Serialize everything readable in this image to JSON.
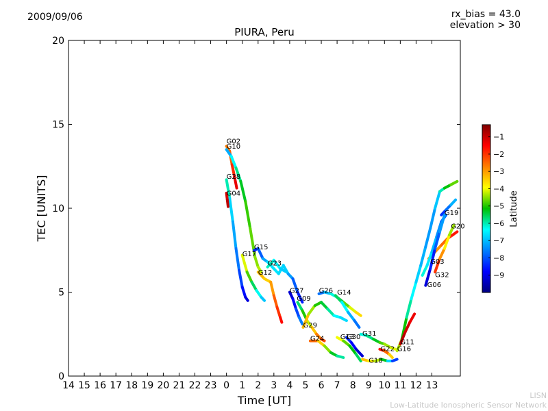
{
  "header": {
    "date": "2009/09/06",
    "rx_bias": "rx_bias = 43.0",
    "elevation": "elevation > 30"
  },
  "credit": {
    "line1": "LISN",
    "line2": "Low-Latitude Ionospheric Sensor Network"
  },
  "chart_data": {
    "type": "scatter",
    "title": "PIURA, Peru",
    "xlabel": "Time [UT]",
    "ylabel": "TEC [UNITS]",
    "x_tick_labels": [
      "14",
      "15",
      "16",
      "17",
      "18",
      "19",
      "20",
      "21",
      "22",
      "23",
      "0",
      "1",
      "2",
      "3",
      "4",
      "5",
      "6",
      "7",
      "8",
      "9",
      "10",
      "11",
      "12",
      "13"
    ],
    "x_tick_hours": [
      -10,
      -9,
      -8,
      -7,
      -6,
      -5,
      -4,
      -3,
      -2,
      -1,
      0,
      1,
      2,
      3,
      4,
      5,
      6,
      7,
      8,
      9,
      10,
      11,
      12,
      13
    ],
    "xlim": [
      -10,
      14.8
    ],
    "ylim": [
      0,
      20
    ],
    "y_ticks": [
      0,
      5,
      10,
      15,
      20
    ],
    "colorbar": {
      "label": "Latitude",
      "range": [
        -10,
        -0.3
      ],
      "ticks": [
        -9,
        -8,
        -7,
        -6,
        -5,
        -4,
        -3,
        -2,
        -1
      ],
      "tick_labels": [
        "−9",
        "−8",
        "−7",
        "−6",
        "−5",
        "−4",
        "−3",
        "−2",
        "−1"
      ]
    },
    "series": [
      {
        "name": "G02",
        "label_at": [
          0.0,
          13.85
        ],
        "points": [
          [
            0.0,
            13.7,
            -2.8
          ],
          [
            0.2,
            13.4,
            -2.6
          ],
          [
            0.35,
            12.6,
            -2.2
          ],
          [
            0.5,
            11.9,
            -1.6
          ],
          [
            0.65,
            11.2,
            -1.0
          ]
        ]
      },
      {
        "name": "G10",
        "label_at": [
          0.0,
          13.55
        ],
        "points": [
          [
            0.0,
            13.5,
            -7.5
          ],
          [
            0.3,
            13.1,
            -6.8
          ],
          [
            0.6,
            12.4,
            -6.0
          ],
          [
            0.9,
            11.6,
            -5.6
          ],
          [
            1.2,
            10.4,
            -5.0
          ],
          [
            1.5,
            8.8,
            -4.8
          ],
          [
            1.8,
            7.1,
            -4.6
          ],
          [
            2.0,
            6.5,
            -4.4
          ],
          [
            2.2,
            6.2,
            -4.2
          ]
        ]
      },
      {
        "name": "G28",
        "label_at": [
          0.0,
          11.75
        ],
        "points": [
          [
            0.0,
            11.7,
            -5.5
          ],
          [
            0.2,
            10.6,
            -6.5
          ],
          [
            0.4,
            9.2,
            -7.0
          ],
          [
            0.6,
            7.6,
            -7.4
          ],
          [
            0.8,
            6.3,
            -7.9
          ],
          [
            1.0,
            5.3,
            -8.4
          ],
          [
            1.2,
            4.7,
            -8.9
          ],
          [
            1.35,
            4.5,
            -9.3
          ]
        ]
      },
      {
        "name": "G04",
        "label_at": [
          0.0,
          10.75
        ],
        "points": [
          [
            0.0,
            10.9,
            -1.2
          ],
          [
            0.05,
            10.5,
            -1.0
          ],
          [
            0.1,
            10.1,
            -0.8
          ]
        ]
      },
      {
        "name": "G17",
        "label_at": [
          1.0,
          7.15
        ],
        "points": [
          [
            1.0,
            7.2,
            -3.8
          ],
          [
            1.3,
            6.2,
            -4.4
          ],
          [
            1.6,
            5.6,
            -5.2
          ],
          [
            1.9,
            5.1,
            -6.0
          ],
          [
            2.2,
            4.7,
            -6.6
          ],
          [
            2.4,
            4.5,
            -7.2
          ]
        ]
      },
      {
        "name": "G15",
        "label_at": [
          1.75,
          7.55
        ],
        "points": [
          [
            1.75,
            7.5,
            -8.5
          ],
          [
            2.0,
            7.6,
            -8.2
          ],
          [
            2.3,
            7.0,
            -7.6
          ],
          [
            2.6,
            6.8,
            -6.8
          ],
          [
            3.0,
            6.4,
            -6.4
          ],
          [
            3.3,
            6.1,
            -6.8
          ],
          [
            3.6,
            6.6,
            -6.6
          ],
          [
            3.9,
            6.1,
            -7.0
          ],
          [
            4.2,
            5.8,
            -7.6
          ],
          [
            4.5,
            5.0,
            -8.2
          ],
          [
            4.8,
            4.4,
            -8.8
          ]
        ]
      },
      {
        "name": "G12",
        "label_at": [
          2.0,
          6.05
        ],
        "points": [
          [
            2.0,
            6.2,
            -3.0
          ],
          [
            2.4,
            5.8,
            -3.6
          ],
          [
            2.8,
            5.6,
            -3.4
          ],
          [
            3.0,
            4.8,
            -2.6
          ],
          [
            3.2,
            4.1,
            -2.2
          ],
          [
            3.4,
            3.5,
            -1.8
          ],
          [
            3.5,
            3.2,
            -1.4
          ]
        ]
      },
      {
        "name": "G23",
        "label_at": [
          2.6,
          6.6
        ],
        "points": [
          [
            2.6,
            6.5,
            -5.9
          ],
          [
            3.0,
            6.9,
            -6.2
          ],
          [
            3.4,
            6.4,
            -6.7
          ],
          [
            3.8,
            6.2,
            -7.0
          ]
        ]
      },
      {
        "name": "G27",
        "label_at": [
          4.0,
          4.95
        ],
        "points": [
          [
            4.0,
            5.0,
            -9.4
          ],
          [
            4.2,
            4.6,
            -9.0
          ],
          [
            4.4,
            4.0,
            -8.4
          ],
          [
            4.6,
            3.5,
            -7.8
          ],
          [
            4.8,
            3.1,
            -7.4
          ]
        ]
      },
      {
        "name": "G09",
        "label_at": [
          4.45,
          4.5
        ],
        "points": [
          [
            4.5,
            4.4,
            -6.0
          ],
          [
            4.8,
            3.9,
            -5.4
          ],
          [
            5.1,
            3.3,
            -4.6
          ],
          [
            5.4,
            2.9,
            -3.8
          ],
          [
            5.7,
            2.5,
            -3.0
          ],
          [
            6.0,
            2.2,
            -2.4
          ],
          [
            6.2,
            2.1,
            -2.0
          ]
        ]
      },
      {
        "name": "G26",
        "label_at": [
          5.85,
          4.95
        ],
        "points": [
          [
            5.85,
            4.9,
            -8.0
          ],
          [
            6.2,
            5.0,
            -7.4
          ],
          [
            6.6,
            4.9,
            -6.6
          ],
          [
            7.0,
            4.7,
            -5.8
          ],
          [
            7.4,
            4.4,
            -5.0
          ],
          [
            7.8,
            4.1,
            -4.4
          ],
          [
            8.2,
            3.8,
            -3.8
          ],
          [
            8.5,
            3.6,
            -3.4
          ]
        ]
      },
      {
        "name": "G14",
        "label_at": [
          7.0,
          4.85
        ],
        "points": [
          [
            6.9,
            4.8,
            -5.2
          ],
          [
            7.3,
            4.4,
            -6.0
          ],
          [
            7.7,
            3.8,
            -6.8
          ],
          [
            8.1,
            3.3,
            -7.4
          ],
          [
            8.4,
            2.9,
            -8.0
          ]
        ]
      },
      {
        "name": "G29",
        "label_at": [
          4.85,
          2.9
        ],
        "points": [
          [
            4.85,
            2.9,
            -2.6
          ],
          [
            5.2,
            3.7,
            -4.0
          ],
          [
            5.6,
            4.2,
            -4.8
          ],
          [
            6.0,
            4.4,
            -5.2
          ],
          [
            6.4,
            4.0,
            -5.6
          ],
          [
            6.8,
            3.6,
            -6.2
          ],
          [
            7.2,
            3.5,
            -6.6
          ],
          [
            7.6,
            3.3,
            -6.8
          ]
        ]
      },
      {
        "name": "G24",
        "label_at": [
          5.3,
          2.1
        ],
        "points": [
          [
            5.3,
            2.1,
            -2.0
          ],
          [
            5.8,
            2.1,
            -3.0
          ],
          [
            6.2,
            1.8,
            -4.0
          ],
          [
            6.6,
            1.4,
            -5.0
          ],
          [
            7.0,
            1.2,
            -5.6
          ],
          [
            7.4,
            1.1,
            -6.2
          ]
        ]
      },
      {
        "name": "G13",
        "label_at": [
          7.2,
          2.2
        ],
        "points": [
          [
            7.0,
            2.3,
            -3.6
          ],
          [
            7.4,
            2.1,
            -4.4
          ],
          [
            7.8,
            1.8,
            -5.0
          ],
          [
            8.2,
            1.3,
            -5.4
          ],
          [
            8.5,
            0.9,
            -5.8
          ]
        ]
      },
      {
        "name": "G30",
        "label_at": [
          7.6,
          2.2
        ],
        "points": [
          [
            7.6,
            2.3,
            -8.2
          ],
          [
            7.9,
            2.0,
            -8.6
          ],
          [
            8.2,
            1.6,
            -9.0
          ],
          [
            8.6,
            1.2,
            -9.4
          ]
        ]
      },
      {
        "name": "G31",
        "label_at": [
          8.6,
          2.4
        ],
        "points": [
          [
            8.5,
            2.5,
            -6.4
          ],
          [
            8.9,
            2.4,
            -6.0
          ],
          [
            9.3,
            2.2,
            -5.6
          ],
          [
            9.7,
            2.0,
            -5.0
          ],
          [
            10.0,
            1.9,
            -4.6
          ],
          [
            10.4,
            1.7,
            -4.2
          ],
          [
            10.7,
            1.6,
            -4.0
          ]
        ]
      },
      {
        "name": "G22",
        "label_at": [
          9.75,
          1.5
        ],
        "points": [
          [
            9.7,
            1.6,
            -1.4
          ],
          [
            10.0,
            1.5,
            -2.0
          ],
          [
            10.3,
            1.3,
            -3.0
          ],
          [
            10.5,
            1.1,
            -4.0
          ]
        ]
      },
      {
        "name": "G18",
        "label_at": [
          9.0,
          0.8
        ],
        "points": [
          [
            8.6,
            1.0,
            -3.2
          ],
          [
            9.0,
            0.9,
            -3.6
          ],
          [
            9.4,
            0.9,
            -4.0
          ],
          [
            9.8,
            1.0,
            -4.6
          ],
          [
            10.2,
            0.9,
            -6.0
          ],
          [
            10.5,
            0.9,
            -7.4
          ],
          [
            10.8,
            1.0,
            -9.0
          ]
        ]
      },
      {
        "name": "G16",
        "label_at": [
          10.8,
          1.5
        ],
        "points": [
          [
            10.8,
            1.5,
            -4.0
          ],
          [
            11.1,
            2.2,
            -4.6
          ],
          [
            11.4,
            3.5,
            -5.6
          ],
          [
            11.7,
            4.6,
            -6.2
          ],
          [
            12.0,
            5.6,
            -6.6
          ],
          [
            12.3,
            6.6,
            -7.0
          ],
          [
            12.6,
            7.7,
            -7.2
          ],
          [
            12.9,
            8.8,
            -7.4
          ],
          [
            13.2,
            10.0,
            -7.2
          ],
          [
            13.5,
            11.0,
            -6.6
          ],
          [
            13.8,
            11.2,
            -5.4
          ],
          [
            14.2,
            11.4,
            -5.0
          ],
          [
            14.6,
            11.6,
            -4.4
          ]
        ]
      },
      {
        "name": "G19",
        "label_at": [
          13.8,
          9.6
        ],
        "points": [
          [
            13.6,
            9.6,
            -8.6
          ],
          [
            13.9,
            9.9,
            -8.0
          ],
          [
            14.2,
            10.2,
            -7.4
          ],
          [
            14.5,
            10.5,
            -6.8
          ]
        ]
      },
      {
        "name": "G20",
        "label_at": [
          14.2,
          8.8
        ],
        "points": [
          [
            12.8,
            7.0,
            -3.0
          ],
          [
            13.2,
            7.4,
            -3.0
          ],
          [
            13.6,
            7.8,
            -2.8
          ],
          [
            14.0,
            8.2,
            -2.2
          ],
          [
            14.3,
            8.4,
            -1.8
          ],
          [
            14.6,
            8.6,
            -1.6
          ]
        ]
      },
      {
        "name": "G03",
        "label_at": [
          12.9,
          6.7
        ],
        "points": [
          [
            12.4,
            6.0,
            -6.0
          ],
          [
            12.7,
            6.6,
            -6.4
          ],
          [
            13.0,
            7.4,
            -6.8
          ],
          [
            13.3,
            8.3,
            -7.2
          ],
          [
            13.6,
            9.2,
            -7.6
          ],
          [
            13.9,
            9.6,
            -8.0
          ]
        ]
      },
      {
        "name": "G32",
        "label_at": [
          13.2,
          5.9
        ],
        "points": [
          [
            13.2,
            6.2,
            -1.6
          ],
          [
            13.5,
            7.0,
            -2.4
          ],
          [
            13.8,
            7.6,
            -3.4
          ],
          [
            14.1,
            8.4,
            -4.2
          ],
          [
            14.4,
            9.0,
            -4.6
          ]
        ]
      },
      {
        "name": "G06",
        "label_at": [
          12.7,
          5.3
        ],
        "points": [
          [
            12.6,
            5.4,
            -9.4
          ],
          [
            12.9,
            6.4,
            -8.8
          ],
          [
            13.2,
            7.6,
            -8.2
          ],
          [
            13.5,
            8.6,
            -7.6
          ],
          [
            13.8,
            9.6,
            -7.0
          ]
        ]
      },
      {
        "name": "G11",
        "label_at": [
          11.0,
          1.9
        ],
        "points": [
          [
            11.0,
            1.9,
            -0.7
          ],
          [
            11.3,
            2.6,
            -1.0
          ],
          [
            11.6,
            3.2,
            -1.2
          ],
          [
            11.9,
            3.7,
            -1.5
          ]
        ]
      }
    ]
  }
}
